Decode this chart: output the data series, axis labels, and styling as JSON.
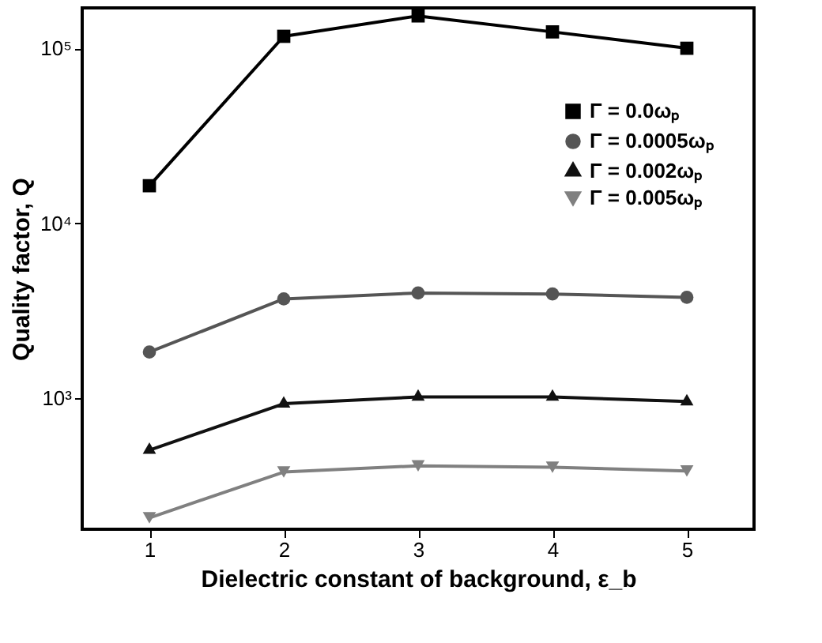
{
  "chart_data": {
    "type": "line",
    "xlabel": "Dielectric constant of background, ε_b",
    "ylabel": "Quality factor, Q",
    "x": [
      1,
      2,
      3,
      4,
      5
    ],
    "series": [
      {
        "name": "Γ = 0.0ωₚ",
        "color": "#000000",
        "marker": "square",
        "values": [
          16400,
          117000,
          153000,
          124000,
          100000
        ]
      },
      {
        "name": "Γ = 0.0005ωₚ",
        "color": "#555555",
        "marker": "circle",
        "values": [
          1840,
          3700,
          4000,
          3950,
          3780
        ]
      },
      {
        "name": "Γ = 0.002ωₚ",
        "color": "#111111",
        "marker": "triangle",
        "values": [
          507,
          933,
          1020,
          1020,
          960
        ]
      },
      {
        "name": "Γ = 0.005ωₚ",
        "color": "#808080",
        "marker": "triangle-down",
        "values": [
          208,
          380,
          412,
          405,
          385
        ]
      }
    ],
    "xlim": [
      0.5,
      5.5
    ],
    "xticks": [
      1,
      2,
      3,
      4,
      5
    ],
    "ylim": [
      179,
      170000
    ],
    "yticks": [
      {
        "value": 1000,
        "label": "10³"
      },
      {
        "value": 10000,
        "label": "10⁴"
      },
      {
        "value": 100000,
        "label": "10⁵"
      }
    ],
    "log": "y",
    "grid": false,
    "legend": "top right",
    "line_style": "solid"
  }
}
